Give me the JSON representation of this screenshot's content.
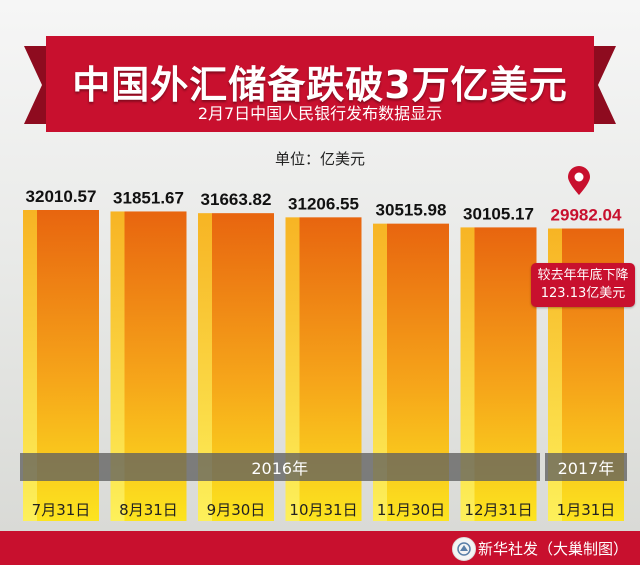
{
  "title": "中国外汇储备跌破3万亿美元",
  "subtitle": "2月7日中国人民银行发布数据显示",
  "unit": "单位：亿美元",
  "chart_data": {
    "type": "bar",
    "categories": [
      "7月31日",
      "8月31日",
      "9月30日",
      "10月31日",
      "11月30日",
      "12月31日",
      "1月31日"
    ],
    "values": [
      32010.57,
      31851.67,
      31663.82,
      31206.55,
      30515.98,
      30105.17,
      29982.04
    ],
    "value_labels": [
      "32010.57",
      "31851.67",
      "31663.82",
      "31206.55",
      "30515.98",
      "30105.17",
      "29982.04"
    ],
    "highlight_index": 6,
    "year_groups": [
      {
        "label": "2016年",
        "from": 0,
        "to": 5
      },
      {
        "label": "2017年",
        "from": 6,
        "to": 6
      }
    ],
    "annotation": {
      "line1": "较去年年底下降",
      "line2": "123.13亿美元"
    }
  },
  "footer": {
    "credit": "新华社发（大巢制图）"
  },
  "colors": {
    "banner_red": "#c8102e",
    "bar_top": "#e8650f",
    "bar_bottom": "#fce41f",
    "highlight_text": "#c8102e"
  }
}
